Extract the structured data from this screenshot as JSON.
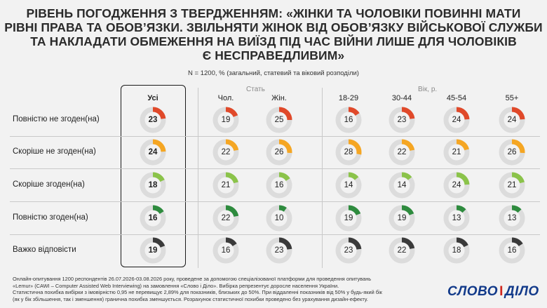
{
  "title_lines": [
    "РІВЕНЬ ПОГОДЖЕННЯ З ТВЕРДЖЕННЯМ: «ЖІНКИ ТА ЧОЛОВІКИ ПОВИННІ МАТИ",
    "РІВНІ ПРАВА ТА ОБОВ’ЯЗКИ. ЗВІЛЬНЯТИ ЖІНОК ВІД ОБОВ’ЯЗКУ ВІЙСЬКОВОЇ СЛУЖБИ",
    "ТА НАКЛАДАТИ ОБМЕЖЕННЯ НА ВИЇЗД ПІД ЧАС ВІЙНИ ЛИШЕ ДЛЯ ЧОЛОВІКІВ",
    "Є НЕСПРАВЕДЛИВИМ»"
  ],
  "subtitle": "N = 1200, % (загальний, статевий та віковий розподіли)",
  "group_labels": {
    "sex": "Стать",
    "age": "Вік, р."
  },
  "colors": {
    "track": "#dcdcdc",
    "completely_disagree": "#e0492a",
    "rather_disagree": "#f5a623",
    "rather_agree": "#8bc34a",
    "completely_agree": "#2e8b3e",
    "hard_to_say": "#3a3a3a"
  },
  "chart_data": {
    "type": "donut-grid",
    "unit": "%",
    "columns": [
      "Усі",
      "Чол.",
      "Жін.",
      "18-29",
      "30-44",
      "45-54",
      "55+"
    ],
    "rows": [
      "Повністю не згоден(на)",
      "Скоріше не згоден(на)",
      "Скоріше згоден(на)",
      "Повністю згоден(на)",
      "Важко відповісти"
    ],
    "row_keys": [
      "completely_disagree",
      "rather_disagree",
      "rather_agree",
      "completely_agree",
      "hard_to_say"
    ],
    "values": [
      [
        23,
        19,
        25,
        16,
        23,
        24,
        24
      ],
      [
        24,
        22,
        26,
        28,
        22,
        21,
        26
      ],
      [
        18,
        21,
        16,
        14,
        14,
        24,
        21
      ],
      [
        16,
        22,
        10,
        19,
        19,
        13,
        13
      ],
      [
        19,
        16,
        23,
        23,
        22,
        18,
        16
      ]
    ],
    "highlight_column": "Усі"
  },
  "footer_lines": [
    "Онлайн-опитування 1200 респондентів 26.07.2026-03.08.2026 року, проведене за допомогою спеціалізованої платформи для проведення опитувань",
    "«Lemur» (CAWI – Computer Assisted Web Interviewing) на замовлення «Слово і Діло». Вибірка репрезентує доросле населення України.",
    "Статистична похибка вибірки з імовірністю 0,95 не перевищує 2,89% для показників, близьких до 50%. При віддаленні показників від 50% у будь-який бік",
    "(як у бік збільшення, так і зменшення) гранична похибка зменшується. Розрахунок статистичної похибки проведено без урахування дизайн-ефекту."
  ],
  "logo": {
    "left": "СЛОВО",
    "sep": "І",
    "right": "ДІЛО"
  }
}
